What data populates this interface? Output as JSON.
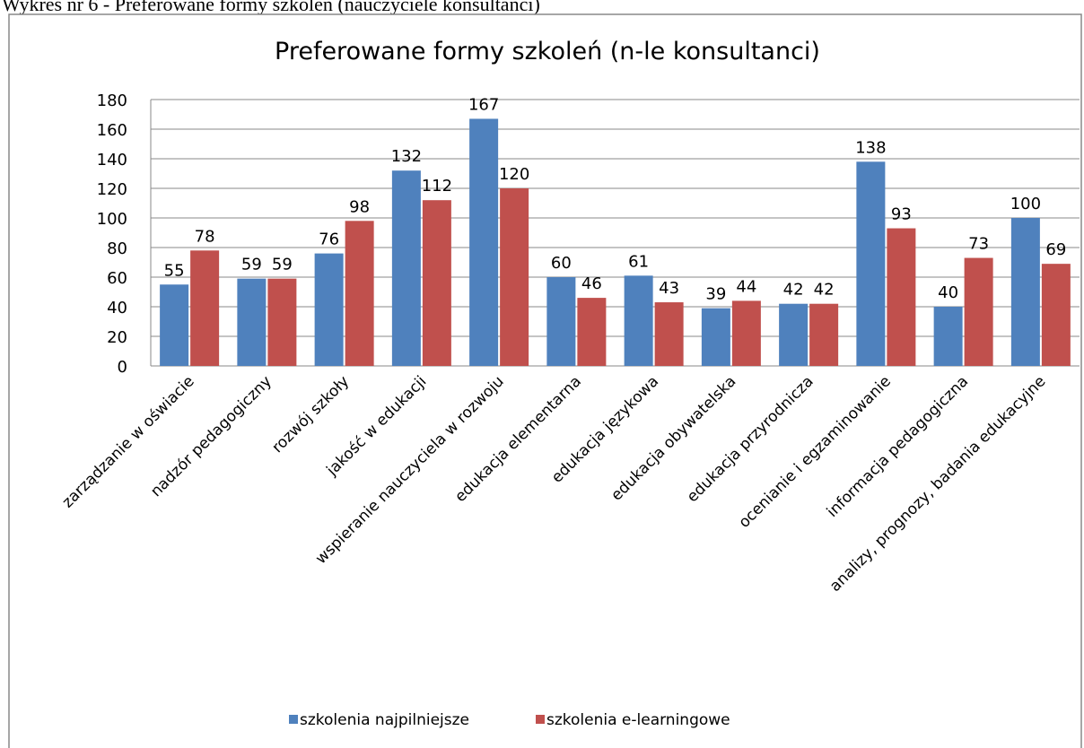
{
  "caption": "Wykres nr 6 - Preferowane formy szkoleń (nauczyciele konsultanci)",
  "chart_data": {
    "type": "bar",
    "title": "Preferowane formy szkoleń (n-le konsultanci)",
    "categories": [
      "zarządzanie w oświacie",
      "nadzór pedagogiczny",
      "rozwój szkoły",
      "jakość w edukacji",
      "wspieranie nauczyciela w rozwoju",
      "edukacja elementarna",
      "edukacja językowa",
      "edukacja obywatelska",
      "edukacja przyrodnicza",
      "ocenianie i egzaminowanie",
      "informacja pedagogiczna",
      "analizy, prognozy, badania edukacyjne"
    ],
    "series": [
      {
        "name": "szkolenia najpilniejsze",
        "color": "#4f81bd",
        "values": [
          55,
          59,
          76,
          132,
          167,
          60,
          61,
          39,
          42,
          138,
          40,
          100
        ]
      },
      {
        "name": "szkolenia e-learningowe",
        "color": "#c0504d",
        "values": [
          78,
          59,
          98,
          112,
          120,
          46,
          43,
          44,
          42,
          93,
          73,
          69
        ]
      }
    ],
    "ylim": [
      0,
      180
    ],
    "yticks": [
      0,
      20,
      40,
      60,
      80,
      100,
      120,
      140,
      160,
      180
    ],
    "grid": true,
    "legend": "bottom"
  }
}
